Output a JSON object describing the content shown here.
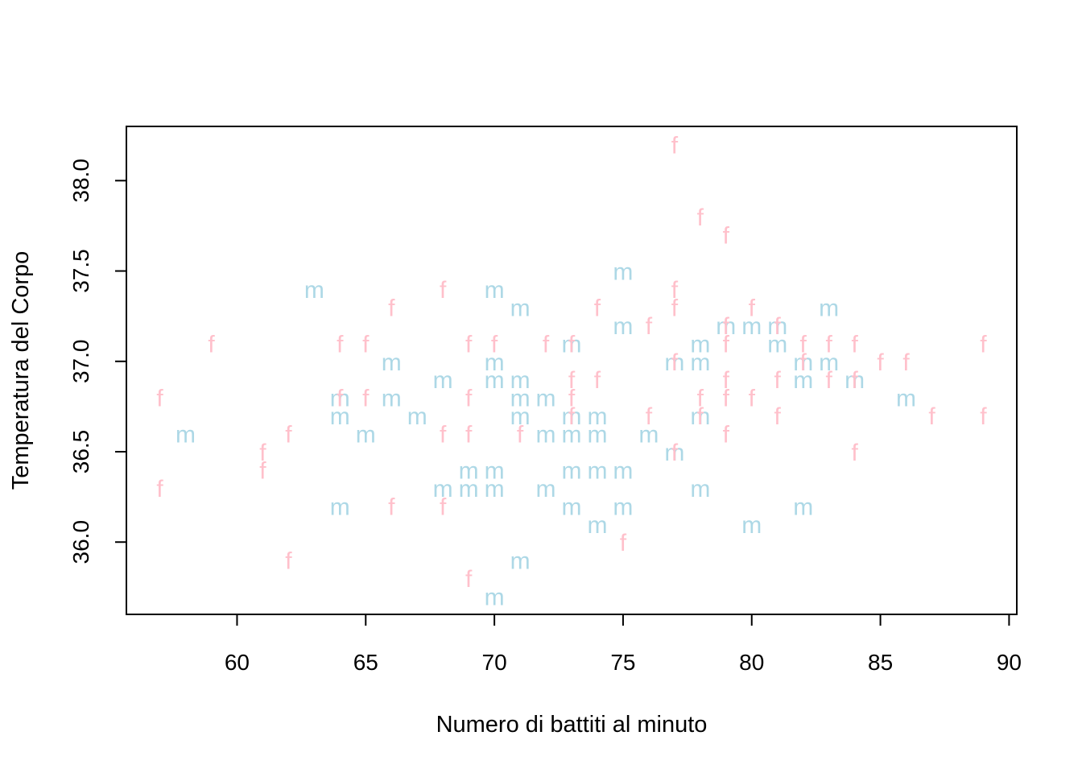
{
  "chart_data": {
    "type": "scatter",
    "xlabel": "Numero di battiti al minuto",
    "ylabel": "Temperatura del Corpo",
    "xlim": [
      55.7,
      90.3
    ],
    "ylim": [
      35.6,
      38.3
    ],
    "xticks": [
      60,
      65,
      70,
      75,
      80,
      85,
      90
    ],
    "yticks": [
      "36.0",
      "36.5",
      "37.0",
      "37.5",
      "38.0"
    ],
    "grid": false,
    "colors": {
      "m": "#add8e6",
      "f": "#ffc0cb"
    },
    "series": [
      {
        "symbol": "m",
        "points": [
          [
            58,
            36.6
          ],
          [
            63,
            37.4
          ],
          [
            64,
            36.8
          ],
          [
            64,
            36.7
          ],
          [
            64,
            36.2
          ],
          [
            65,
            36.6
          ],
          [
            66,
            37.0
          ],
          [
            66,
            36.8
          ],
          [
            67,
            36.7
          ],
          [
            68,
            36.9
          ],
          [
            68,
            36.3
          ],
          [
            69,
            36.4
          ],
          [
            69,
            36.3
          ],
          [
            70,
            37.4
          ],
          [
            70,
            37.0
          ],
          [
            70,
            36.9
          ],
          [
            70,
            36.4
          ],
          [
            70,
            36.3
          ],
          [
            70,
            35.7
          ],
          [
            71,
            37.3
          ],
          [
            71,
            36.9
          ],
          [
            71,
            36.8
          ],
          [
            71,
            36.7
          ],
          [
            71,
            35.9
          ],
          [
            72,
            36.8
          ],
          [
            72,
            36.6
          ],
          [
            72,
            36.3
          ],
          [
            73,
            37.1
          ],
          [
            73,
            36.7
          ],
          [
            73,
            36.6
          ],
          [
            73,
            36.4
          ],
          [
            73,
            36.2
          ],
          [
            74,
            36.7
          ],
          [
            74,
            36.6
          ],
          [
            74,
            36.4
          ],
          [
            74,
            36.1
          ],
          [
            75,
            37.5
          ],
          [
            75,
            37.2
          ],
          [
            75,
            36.4
          ],
          [
            75,
            36.2
          ],
          [
            76,
            36.6
          ],
          [
            77,
            37.0
          ],
          [
            77,
            36.5
          ],
          [
            78,
            37.1
          ],
          [
            78,
            37.0
          ],
          [
            78,
            36.7
          ],
          [
            78,
            36.3
          ],
          [
            79,
            37.2
          ],
          [
            80,
            37.2
          ],
          [
            80,
            36.1
          ],
          [
            81,
            37.2
          ],
          [
            81,
            37.1
          ],
          [
            82,
            37.0
          ],
          [
            82,
            36.9
          ],
          [
            82,
            36.2
          ],
          [
            83,
            37.3
          ],
          [
            83,
            37.0
          ],
          [
            84,
            36.9
          ],
          [
            86,
            36.8
          ]
        ]
      },
      {
        "symbol": "f",
        "points": [
          [
            57,
            36.8
          ],
          [
            57,
            36.3
          ],
          [
            59,
            37.1
          ],
          [
            61,
            36.5
          ],
          [
            61,
            36.4
          ],
          [
            62,
            36.6
          ],
          [
            62,
            35.9
          ],
          [
            64,
            37.1
          ],
          [
            64,
            36.8
          ],
          [
            65,
            37.1
          ],
          [
            65,
            36.8
          ],
          [
            66,
            37.3
          ],
          [
            66,
            36.2
          ],
          [
            68,
            37.4
          ],
          [
            68,
            36.6
          ],
          [
            68,
            36.2
          ],
          [
            69,
            37.1
          ],
          [
            69,
            36.8
          ],
          [
            69,
            36.6
          ],
          [
            69,
            35.8
          ],
          [
            70,
            37.1
          ],
          [
            71,
            36.6
          ],
          [
            72,
            37.1
          ],
          [
            73,
            37.1
          ],
          [
            73,
            36.9
          ],
          [
            73,
            36.8
          ],
          [
            73,
            36.7
          ],
          [
            74,
            37.3
          ],
          [
            74,
            36.9
          ],
          [
            75,
            36.0
          ],
          [
            76,
            37.2
          ],
          [
            76,
            36.7
          ],
          [
            77,
            38.2
          ],
          [
            77,
            37.4
          ],
          [
            77,
            37.3
          ],
          [
            77,
            37.0
          ],
          [
            77,
            36.5
          ],
          [
            78,
            37.8
          ],
          [
            78,
            36.8
          ],
          [
            78,
            36.7
          ],
          [
            79,
            37.7
          ],
          [
            79,
            37.2
          ],
          [
            79,
            37.1
          ],
          [
            79,
            36.9
          ],
          [
            79,
            36.8
          ],
          [
            79,
            36.6
          ],
          [
            80,
            37.3
          ],
          [
            80,
            36.8
          ],
          [
            81,
            37.2
          ],
          [
            81,
            36.9
          ],
          [
            81,
            36.7
          ],
          [
            82,
            37.1
          ],
          [
            82,
            37.0
          ],
          [
            83,
            37.1
          ],
          [
            83,
            36.9
          ],
          [
            84,
            37.1
          ],
          [
            84,
            36.9
          ],
          [
            84,
            36.5
          ],
          [
            85,
            37.0
          ],
          [
            86,
            37.0
          ],
          [
            87,
            36.7
          ],
          [
            89,
            37.1
          ],
          [
            89,
            36.7
          ]
        ]
      }
    ]
  }
}
